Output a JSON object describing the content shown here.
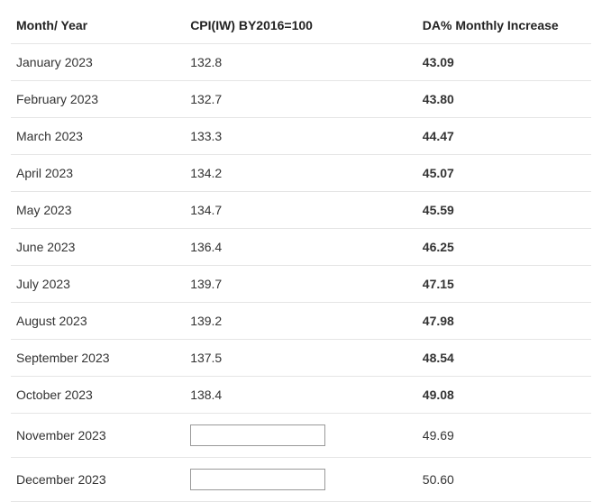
{
  "table": {
    "headers": {
      "month": "Month/ Year",
      "cpi": "CPI(IW) BY2016=100",
      "da": "DA% Monthly Increase"
    },
    "colors": {
      "text": "#333333",
      "header_text": "#222222",
      "border": "#e5e5e5",
      "background": "#ffffff"
    },
    "font_size": 14,
    "rows": [
      {
        "month": "January 2023",
        "cpi": "132.8",
        "da": "43.09",
        "cpi_is_input": false
      },
      {
        "month": "February 2023",
        "cpi": "132.7",
        "da": "43.80",
        "cpi_is_input": false
      },
      {
        "month": "March 2023",
        "cpi": "133.3",
        "da": "44.47",
        "cpi_is_input": false
      },
      {
        "month": "April 2023",
        "cpi": "134.2",
        "da": "45.07",
        "cpi_is_input": false
      },
      {
        "month": "May 2023",
        "cpi": "134.7",
        "da": "45.59",
        "cpi_is_input": false
      },
      {
        "month": "June 2023",
        "cpi": "136.4",
        "da": "46.25",
        "cpi_is_input": false
      },
      {
        "month": "July 2023",
        "cpi": "139.7",
        "da": "47.15",
        "cpi_is_input": false
      },
      {
        "month": "August 2023",
        "cpi": "139.2",
        "da": "47.98",
        "cpi_is_input": false
      },
      {
        "month": "September 2023",
        "cpi": "137.5",
        "da": "48.54",
        "cpi_is_input": false
      },
      {
        "month": "October 2023",
        "cpi": "138.4",
        "da": "49.08",
        "cpi_is_input": false
      },
      {
        "month": "November 2023",
        "cpi": "",
        "da": "49.69",
        "cpi_is_input": true
      },
      {
        "month": "December 2023",
        "cpi": "",
        "da": "50.60",
        "cpi_is_input": true
      }
    ]
  }
}
